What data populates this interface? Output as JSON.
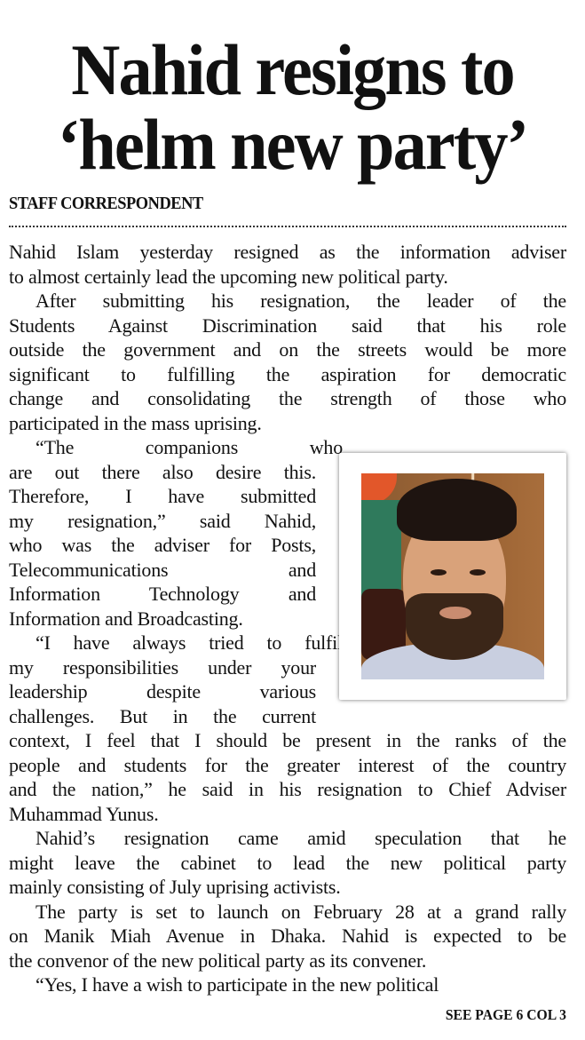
{
  "headline": {
    "line1": "Nahid resigns to",
    "line2": "‘helm new party’"
  },
  "byline": "STAFF CORRESPONDENT",
  "photo": {
    "subject": "portrait-photo"
  },
  "body_lines": [
    {
      "text": "Nahid Islam yesterday resigned as the information adviser"
    },
    {
      "text": "to almost certainly lead the upcoming new political party.",
      "last": true
    },
    {
      "text": "After submitting his resignation, the leader of the",
      "indent": true
    },
    {
      "text": "Students Against Discrimination said that his role"
    },
    {
      "text": "outside the government and on the streets would be more"
    },
    {
      "text": "significant to fulfilling the aspiration for democratic"
    },
    {
      "text": "change and consolidating the strength of those who"
    },
    {
      "text": "participated in the mass uprising.",
      "last": true
    },
    {
      "text": "“The companions who",
      "indent": true,
      "narrow": true
    },
    {
      "text": "are out there also desire this.",
      "narrow": true
    },
    {
      "text": "Therefore, I have submitted",
      "narrow": true
    },
    {
      "text": "my resignation,” said Nahid,",
      "narrow": true
    },
    {
      "text": "who was the adviser for Posts,",
      "narrow": true
    },
    {
      "text": "Telecommunications and",
      "narrow": true
    },
    {
      "text": "Information Technology and",
      "narrow": true
    },
    {
      "text": "Information and Broadcasting.",
      "narrow": true,
      "last": true
    },
    {
      "text": "“I have always tried to fulfil",
      "indent": true,
      "narrow": true
    },
    {
      "text": "my responsibilities under your",
      "narrow": true
    },
    {
      "text": "leadership despite various",
      "narrow": true
    },
    {
      "text": "challenges. But in the current",
      "narrow": true
    },
    {
      "text": "context, I feel that I should be present in the ranks of the"
    },
    {
      "text": "people and students for the greater interest of the country"
    },
    {
      "text": "and the nation,” he said in his resignation to Chief Adviser"
    },
    {
      "text": "Muhammad Yunus.",
      "last": true
    },
    {
      "text": "Nahid’s resignation came amid speculation that he",
      "indent": true
    },
    {
      "text": "might leave the cabinet to lead the new political party"
    },
    {
      "text": "mainly consisting of July uprising activists.",
      "last": true
    },
    {
      "text": "The party is set to launch on February 28 at a grand rally",
      "indent": true
    },
    {
      "text": "on Manik Miah Avenue in Dhaka. Nahid is expected to be"
    },
    {
      "text": "the convenor of the new political party as its convener.",
      "last": true
    },
    {
      "text": "“Yes, I have a wish to participate in the new political",
      "indent": true,
      "last": true
    }
  ],
  "continuation": "SEE PAGE 6 COL 3"
}
